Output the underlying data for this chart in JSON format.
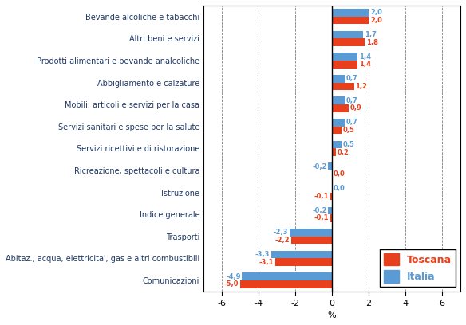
{
  "categories": [
    "Bevande alcoliche e tabacchi",
    "Altri beni e servizi",
    "Prodotti alimentari e bevande analcoliche",
    "Abbigliamento e calzature",
    "Mobili, articoli e servizi per la casa",
    "Servizi sanitari e spese per la salute",
    "Servizi ricettivi e di ristorazione",
    "Ricreazione, spettacoli e cultura",
    "Istruzione",
    "Indice generale",
    "Trasporti",
    "Abitaz., acqua, elettricita', gas e altri combustibili",
    "Comunicazioni"
  ],
  "toscana": [
    2.0,
    1.8,
    1.4,
    1.2,
    0.9,
    0.5,
    0.2,
    0.0,
    -0.1,
    -0.1,
    -2.2,
    -3.1,
    -5.0
  ],
  "italia": [
    2.0,
    1.7,
    1.4,
    0.7,
    0.7,
    0.7,
    0.5,
    -0.2,
    0.0,
    -0.2,
    -2.3,
    -3.3,
    -4.9
  ],
  "toscana_color": "#e8401c",
  "italia_color": "#5b9bd5",
  "label_color": "#1f3864",
  "xlabel": "%",
  "xlim": [
    -7,
    7
  ],
  "xticks": [
    -6,
    -4,
    -2,
    0,
    2,
    4,
    6
  ],
  "legend_toscana": "Toscana",
  "legend_italia": "Italia",
  "bar_height": 0.35,
  "figsize": [
    5.84,
    4.08
  ],
  "dpi": 100,
  "axis_label_fontsize": 8,
  "legend_fontsize": 9,
  "category_fontsize": 7,
  "value_fontsize": 6
}
